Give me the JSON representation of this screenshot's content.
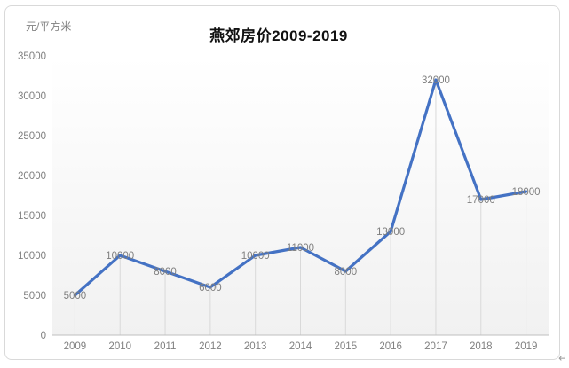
{
  "chart_data": {
    "type": "line",
    "title": "燕郊房价2009-2019",
    "unit_label": "元/平方米",
    "categories": [
      "2009",
      "2010",
      "2011",
      "2012",
      "2013",
      "2014",
      "2015",
      "2016",
      "2017",
      "2018",
      "2019"
    ],
    "series": [
      {
        "name": "燕郊房价",
        "values": [
          5000,
          10000,
          8000,
          6000,
          10000,
          11000,
          8000,
          13000,
          32000,
          17000,
          18000
        ]
      }
    ],
    "data_labels": [
      "5000",
      "10000",
      "8000",
      "6000",
      "10000",
      "11000",
      "8000",
      "13000",
      "32000",
      "17000",
      "18000"
    ],
    "ylabel": "元/平方米",
    "xlabel": "",
    "ylim": [
      0,
      35000
    ],
    "ytick_step": 5000,
    "ytick_labels": [
      "0",
      "5000",
      "10000",
      "15000",
      "20000",
      "25000",
      "30000",
      "35000"
    ],
    "legend": "none",
    "grid": "vertical drop lines from points to x-axis only",
    "colors": {
      "line": "#4472C4",
      "data_label": "#7f7f7f",
      "axis_label": "#808080",
      "axis_line": "#bfbfbf",
      "drop_line": "#d9d9d9",
      "frame_border": "#d9d9d9",
      "title": "#111111",
      "plot_bg_top": "#ffffff",
      "plot_bg_bottom": "#f1f1f1"
    }
  },
  "page": {
    "return_mark": "↵"
  }
}
